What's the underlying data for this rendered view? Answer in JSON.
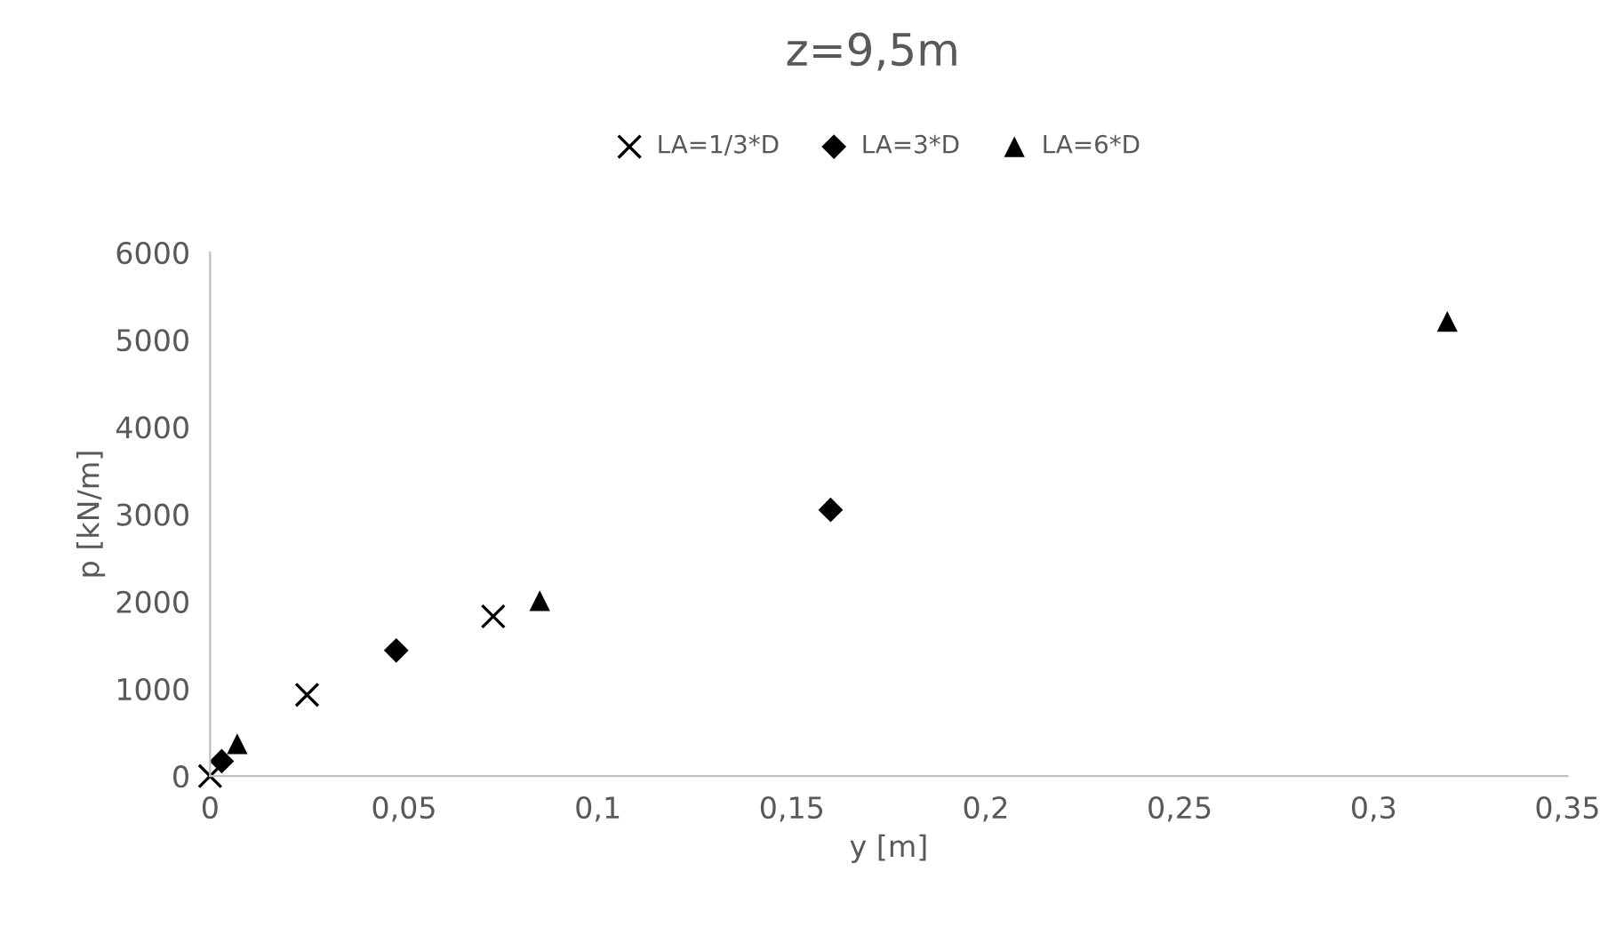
{
  "chart_data": {
    "type": "scatter",
    "title": "z=9,5m",
    "xlabel": "y [m]",
    "ylabel": "p [kN/m]",
    "xlim": [
      0,
      0.35
    ],
    "ylim": [
      0,
      6000
    ],
    "xticks": [
      0,
      {
        "value": 0.05,
        "label": "0,05"
      },
      {
        "value": 0.1,
        "label": "0,1"
      },
      {
        "value": 0.15,
        "label": "0,15"
      },
      {
        "value": 0.2,
        "label": "0,2"
      },
      {
        "value": 0.25,
        "label": "0,25"
      },
      {
        "value": 0.3,
        "label": "0,3"
      },
      {
        "value": 0.35,
        "label": "0,35"
      }
    ],
    "yticks": [
      0,
      1000,
      2000,
      3000,
      4000,
      5000,
      6000
    ],
    "grid": false,
    "legend": "top",
    "series": [
      {
        "name": "LA=1/3*D",
        "color": "#000000",
        "marker": "cross",
        "x": [
          0,
          0.025,
          0.073
        ],
        "values": [
          0,
          930,
          1830
        ]
      },
      {
        "name": "LA=3*D",
        "color": "#000000",
        "marker": "diamond",
        "x": [
          0.003,
          0.048,
          0.16
        ],
        "values": [
          170,
          1440,
          3050
        ]
      },
      {
        "name": "LA=6*D",
        "color": "#000000",
        "marker": "triangle",
        "x": [
          0.007,
          0.085,
          0.319
        ],
        "values": [
          370,
          2010,
          5210
        ]
      }
    ]
  }
}
